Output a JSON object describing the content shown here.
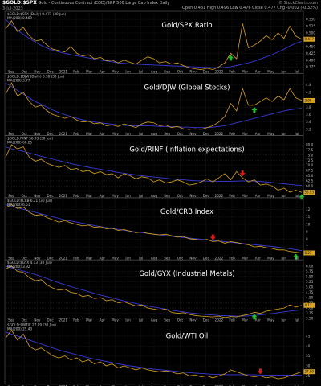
{
  "header": {
    "symbol": "$GOLD:$SPX",
    "description": "Gold - Continuous Contract (EOD)/S&P 500 Large Cap Index  Daily",
    "date": "3-Jul-2023",
    "source": "© StockCharts.com",
    "ohlc": "Open 0.481  High 0.496  Low 0.476  Close 0.477  Chg -0.002 (-0.32%)"
  },
  "x_axis": {
    "ticks": [
      "Sep",
      "Oct",
      "Nov",
      "Dec",
      "2021",
      "Feb",
      "Mar",
      "Apr",
      "May",
      "Jun",
      "Jul",
      "Aug",
      "Sep",
      "Oct",
      "Nov",
      "Dec",
      "2022",
      "Feb",
      "Mar",
      "Apr",
      "May",
      "Jun",
      "Jul"
    ]
  },
  "colors": {
    "background": "#000000",
    "price": "#d9a520",
    "ma": "#3a3ad6",
    "grid": "#2e2e2e",
    "up_arrow": "#1fbf2f",
    "down_arrow": "#e01b1b"
  },
  "chart_data": [
    {
      "type": "line",
      "title": "Gold/SPX Ratio",
      "legend": [
        "$GOLD:$SPX (Daily) 0.477 (30 Jun)",
        "MA(200) 0.469"
      ],
      "last_value": "0.477",
      "y_ticks": [
        "0.550",
        "0.525",
        "0.500",
        "0.475",
        "0.450",
        "0.425",
        "0.400",
        "0.375"
      ],
      "ylim": [
        0.36,
        0.565
      ],
      "price": [
        0.515,
        0.545,
        0.505,
        0.52,
        0.49,
        0.47,
        0.475,
        0.455,
        0.44,
        0.435,
        0.43,
        0.45,
        0.425,
        0.415,
        0.42,
        0.405,
        0.41,
        0.398,
        0.4,
        0.39,
        0.4,
        0.392,
        0.385,
        0.4,
        0.412,
        0.405,
        0.39,
        0.395,
        0.385,
        0.39,
        0.38,
        0.372,
        0.368,
        0.365,
        0.37,
        0.365,
        0.375,
        0.39,
        0.425,
        0.405,
        0.535,
        0.445,
        0.455,
        0.47,
        0.49,
        0.475,
        0.5,
        0.48,
        0.525,
        0.488,
        0.477
      ],
      "ma": [
        0.55,
        0.53,
        0.51,
        0.495,
        0.48,
        0.466,
        0.454,
        0.444,
        0.436,
        0.43,
        0.425,
        0.42,
        0.416,
        0.412,
        0.408,
        0.404,
        0.4,
        0.397,
        0.394,
        0.39,
        0.388,
        0.386,
        0.385,
        0.384,
        0.383,
        0.382,
        0.381,
        0.38,
        0.379,
        0.378,
        0.377,
        0.376,
        0.375,
        0.374,
        0.373,
        0.372,
        0.372,
        0.373,
        0.376,
        0.38,
        0.385,
        0.39,
        0.396,
        0.404,
        0.412,
        0.42,
        0.43,
        0.44,
        0.452,
        0.462,
        0.469
      ],
      "markers": [
        {
          "type": "up",
          "at": 0.75
        }
      ]
    },
    {
      "type": "line",
      "title": "Gold/DJW (Global Stocks)",
      "legend": [
        "$GOLD:$DJW (Daily) 3.98 (30 Jun)",
        "MA(200) 3.77"
      ],
      "last_value": "3.98",
      "y_ticks": [
        "4.4",
        "4.2",
        "4.0",
        "3.8",
        "3.6",
        "3.4",
        "3.2"
      ],
      "ylim": [
        3.1,
        4.6
      ],
      "price": [
        4.15,
        4.45,
        4.1,
        4.2,
        3.95,
        3.8,
        3.85,
        3.7,
        3.6,
        3.55,
        3.5,
        3.55,
        3.45,
        3.4,
        3.42,
        3.35,
        3.38,
        3.3,
        3.32,
        3.28,
        3.35,
        3.3,
        3.25,
        3.35,
        3.4,
        3.38,
        3.3,
        3.32,
        3.25,
        3.28,
        3.22,
        3.2,
        3.22,
        3.2,
        3.25,
        3.3,
        3.4,
        3.55,
        3.9,
        3.7,
        4.3,
        3.85,
        3.85,
        3.95,
        4.05,
        3.95,
        4.1,
        4.0,
        4.3,
        4.05,
        3.98
      ],
      "ma": [
        4.45,
        4.35,
        4.25,
        4.15,
        4.05,
        3.95,
        3.88,
        3.8,
        3.72,
        3.66,
        3.6,
        3.55,
        3.5,
        3.46,
        3.43,
        3.4,
        3.38,
        3.36,
        3.34,
        3.32,
        3.31,
        3.3,
        3.3,
        3.3,
        3.3,
        3.29,
        3.28,
        3.28,
        3.27,
        3.27,
        3.26,
        3.26,
        3.25,
        3.25,
        3.25,
        3.26,
        3.28,
        3.3,
        3.34,
        3.38,
        3.42,
        3.46,
        3.5,
        3.54,
        3.58,
        3.62,
        3.66,
        3.7,
        3.73,
        3.75,
        3.77
      ],
      "markers": [
        {
          "type": "up",
          "at": 0.84
        }
      ]
    },
    {
      "type": "line",
      "title": "Gold/RINF (inflation expectations)",
      "legend": [
        "$GOLD:RINF 56.93 (30 Jun)",
        "MA(200) 60.25"
      ],
      "last_value": "56.93",
      "y_ticks": [
        "80.0",
        "77.5",
        "75.0",
        "72.5",
        "70.0",
        "67.5",
        "65.0",
        "62.5",
        "60.0",
        "57.5"
      ],
      "ylim": [
        55.5,
        82.5
      ],
      "price": [
        74,
        80,
        78,
        79,
        74,
        72,
        73,
        71,
        70,
        69,
        70,
        68,
        68.5,
        67,
        67.5,
        66,
        67,
        65.5,
        66,
        64,
        66,
        65,
        63.5,
        64.5,
        64,
        62,
        63,
        61.5,
        62,
        63,
        62,
        60.5,
        61,
        62,
        63.5,
        62,
        64,
        66,
        63,
        67,
        64,
        62,
        63,
        60.5,
        61,
        60,
        58,
        59,
        57,
        58,
        56.93
      ],
      "ma": [
        79,
        78,
        77.4,
        76.8,
        76,
        75.2,
        74.4,
        73.7,
        73,
        72.3,
        71.6,
        70.9,
        70.3,
        69.7,
        69.1,
        68.6,
        68.1,
        67.6,
        67.1,
        66.6,
        66.2,
        65.8,
        65.4,
        65,
        64.7,
        64.4,
        64.1,
        63.8,
        63.5,
        63.2,
        63,
        62.8,
        62.6,
        62.5,
        62.4,
        62.3,
        62.3,
        62.3,
        62.3,
        62.4,
        62.5,
        62.5,
        62.4,
        62.2,
        62,
        61.7,
        61.4,
        61.1,
        60.8,
        60.5,
        60.25
      ],
      "markers": [
        {
          "type": "down",
          "at": 0.795
        },
        {
          "type": "up",
          "at": 0.99
        }
      ]
    },
    {
      "type": "line",
      "title": "Gold/CRB Index",
      "legend": [
        "$GOLD:$CRB 6.21 (30 Jun)",
        "MA(200) 6.51"
      ],
      "last_value": "6.21",
      "y_ticks": [
        "12",
        "11",
        "10",
        "9",
        "8",
        "7"
      ],
      "ylim": [
        5.6,
        13
      ],
      "price": [
        12.2,
        12.6,
        12.1,
        12.3,
        11.6,
        11.2,
        11.3,
        10.9,
        10.6,
        10.3,
        10.5,
        10.2,
        10,
        9.8,
        9.9,
        9.6,
        9.7,
        9.4,
        9.5,
        9.2,
        9.3,
        9.1,
        8.9,
        9.0,
        8.8,
        8.7,
        8.6,
        8.7,
        8.5,
        8.3,
        8.4,
        8.1,
        8.0,
        7.9,
        8.0,
        7.7,
        7.8,
        7.5,
        7.7,
        7.6,
        7.4,
        7.3,
        7.0,
        7.1,
        6.9,
        6.8,
        6.6,
        6.6,
        6.4,
        6.3,
        6.21
      ],
      "ma": [
        12.6,
        12.4,
        12.2,
        12.0,
        11.8,
        11.6,
        11.4,
        11.2,
        11.0,
        10.8,
        10.6,
        10.45,
        10.3,
        10.15,
        10.0,
        9.85,
        9.7,
        9.58,
        9.46,
        9.34,
        9.22,
        9.1,
        9.0,
        8.9,
        8.8,
        8.7,
        8.6,
        8.5,
        8.42,
        8.34,
        8.26,
        8.18,
        8.1,
        8.02,
        7.94,
        7.86,
        7.78,
        7.7,
        7.62,
        7.54,
        7.46,
        7.38,
        7.3,
        7.22,
        7.14,
        7.06,
        6.96,
        6.86,
        6.76,
        6.64,
        6.51
      ],
      "markers": [
        {
          "type": "down",
          "at": 0.69
        },
        {
          "type": "up",
          "at": 0.985
        }
      ]
    },
    {
      "type": "line",
      "title": "Gold/GYX (Industrial Metals)",
      "legend": [
        "$GOLD:$GYX 4.13 (30 Jun)",
        "MA(200) 3.92"
      ],
      "last_value": "4.13",
      "y_ticks": [
        "6.00",
        "5.75",
        "5.50",
        "5.25",
        "5.00",
        "4.75",
        "4.50",
        "4.25",
        "4.00",
        "3.75",
        "3.50"
      ],
      "ylim": [
        3.45,
        6.1
      ],
      "price": [
        5.85,
        6.0,
        5.75,
        5.7,
        5.45,
        5.3,
        5.35,
        5.1,
        4.95,
        4.85,
        4.9,
        4.75,
        4.7,
        4.55,
        4.6,
        4.45,
        4.5,
        4.35,
        4.4,
        4.25,
        4.3,
        4.2,
        4.1,
        4.15,
        4.0,
        3.95,
        3.9,
        3.95,
        3.8,
        3.75,
        3.78,
        3.7,
        3.65,
        3.62,
        3.6,
        3.58,
        3.62,
        3.55,
        3.6,
        3.58,
        3.65,
        3.7,
        3.8,
        3.75,
        3.85,
        3.9,
        3.95,
        4.0,
        4.15,
        4.05,
        4.13
      ],
      "ma": [
        6.0,
        5.92,
        5.84,
        5.76,
        5.68,
        5.6,
        5.5,
        5.4,
        5.3,
        5.2,
        5.11,
        5.02,
        4.94,
        4.86,
        4.78,
        4.7,
        4.62,
        4.55,
        4.48,
        4.41,
        4.34,
        4.28,
        4.22,
        4.16,
        4.1,
        4.05,
        4.0,
        3.95,
        3.9,
        3.86,
        3.82,
        3.78,
        3.75,
        3.72,
        3.69,
        3.67,
        3.65,
        3.64,
        3.63,
        3.62,
        3.62,
        3.63,
        3.65,
        3.68,
        3.71,
        3.74,
        3.78,
        3.82,
        3.86,
        3.89,
        3.92
      ],
      "markers": [
        {
          "type": "up",
          "at": 0.835
        }
      ]
    },
    {
      "type": "line",
      "title": "Gold/WTI Oil",
      "legend": [
        "$GOLD:$WTIC 27.09 (30 Jun)",
        "MA(200) 25.43"
      ],
      "last_value": "27.09",
      "y_ticks": [
        "45",
        "40",
        "35",
        "30",
        "25",
        "20"
      ],
      "ylim": [
        22,
        50
      ],
      "price": [
        44,
        48,
        43,
        46,
        40,
        38,
        39,
        37,
        35,
        34,
        35,
        33,
        34,
        32,
        33,
        31,
        32,
        30,
        31,
        29,
        30,
        29,
        28,
        29,
        28,
        27.5,
        27,
        27.5,
        27,
        26,
        26.5,
        25,
        25.5,
        24.5,
        25,
        24,
        25,
        26,
        28,
        27,
        26,
        25,
        24.5,
        25,
        24,
        24.5,
        23.5,
        24,
        25,
        26,
        27.09
      ],
      "ma": [
        47,
        46,
        45,
        44,
        43,
        42,
        41,
        40,
        39,
        38,
        37.2,
        36.4,
        35.6,
        34.8,
        34.1,
        33.4,
        32.8,
        32.2,
        31.6,
        31,
        30.5,
        30,
        29.6,
        29.2,
        28.8,
        28.4,
        28.1,
        27.8,
        27.5,
        27.2,
        26.9,
        26.6,
        26.4,
        26.2,
        26,
        25.8,
        25.7,
        25.6,
        25.6,
        25.6,
        25.6,
        25.6,
        25.5,
        25.4,
        25.3,
        25.3,
        25.3,
        25.3,
        25.35,
        25.4,
        25.43
      ],
      "markers": [
        {
          "type": "down",
          "at": 0.865
        }
      ]
    }
  ]
}
